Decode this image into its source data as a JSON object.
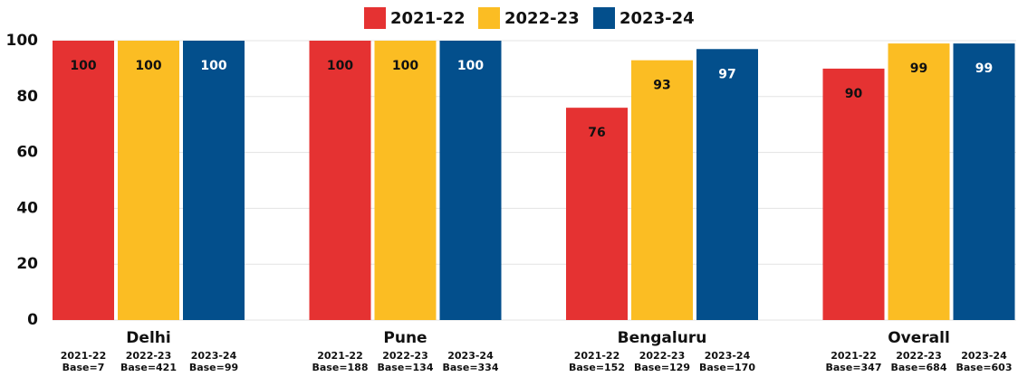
{
  "chart_data": {
    "type": "bar",
    "categories": [
      "Delhi",
      "Pune",
      "Bengaluru",
      "Overall"
    ],
    "series": [
      {
        "name": "2021-22",
        "color": "#e53232",
        "values": [
          100,
          100,
          76,
          90
        ]
      },
      {
        "name": "2022-23",
        "color": "#fbbd23",
        "values": [
          100,
          100,
          93,
          99
        ]
      },
      {
        "name": "2023-24",
        "color": "#034f8c",
        "values": [
          100,
          100,
          97,
          99
        ]
      }
    ],
    "base_labels": [
      [
        "Base=7",
        "Base=421",
        "Base=99"
      ],
      [
        "Base=188",
        "Base=134",
        "Base=334"
      ],
      [
        "Base=152",
        "Base=129",
        "Base=170"
      ],
      [
        "Base=347",
        "Base=684",
        "Base=603"
      ]
    ],
    "ylim": [
      0,
      100
    ],
    "yticks": [
      0,
      20,
      40,
      60,
      80,
      100
    ],
    "grid": true,
    "legend": "top"
  }
}
